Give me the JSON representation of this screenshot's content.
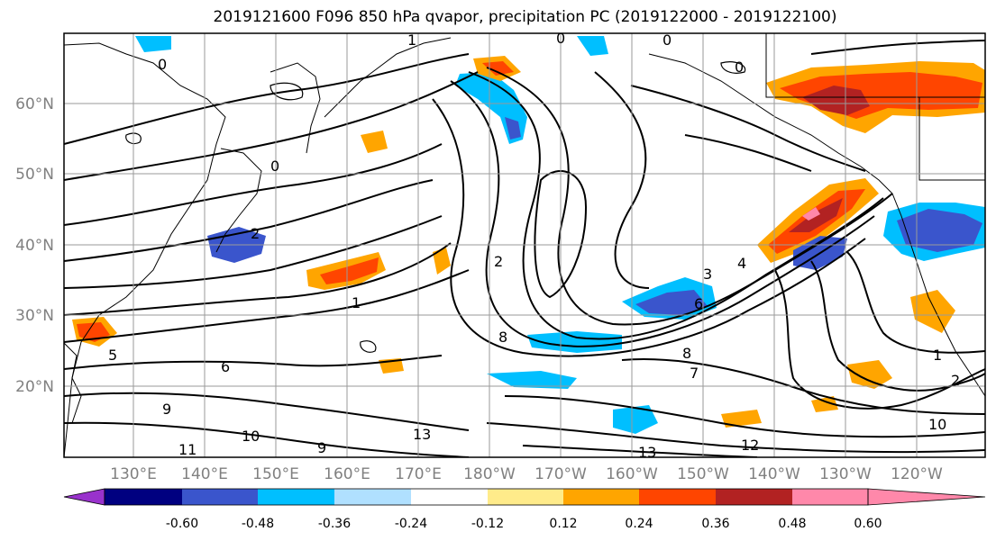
{
  "title": "2019121600 F096 850 hPa qvapor, precipitation PC (2019122000 - 2019122100)",
  "lat_labels": [
    "60°N",
    "50°N",
    "40°N",
    "30°N",
    "20°N"
  ],
  "lon_labels": [
    "130°E",
    "140°E",
    "150°E",
    "160°E",
    "170°E",
    "180°W",
    "170°W",
    "160°W",
    "150°W",
    "140°W",
    "130°W",
    "120°W"
  ],
  "colorbar": {
    "ticks": [
      "-0.60",
      "-0.48",
      "-0.36",
      "-0.24",
      "-0.12",
      "0.12",
      "0.24",
      "0.36",
      "0.48",
      "0.60"
    ],
    "colors": [
      "#9932cc",
      "#000080",
      "#3a55cc",
      "#00bfff",
      "#b0e0ff",
      "#ffffff",
      "#ffeb8a",
      "#ffa500",
      "#ff4500",
      "#b22222",
      "#ff88aa"
    ]
  },
  "contour_labels": [
    "1",
    "0",
    "0",
    "0",
    "0",
    "0",
    "2",
    "1",
    "2",
    "3",
    "4",
    "5",
    "6",
    "6",
    "7",
    "8",
    "8",
    "9",
    "9",
    "10",
    "10",
    "11",
    "12",
    "13",
    "13",
    "1",
    "2"
  ]
}
